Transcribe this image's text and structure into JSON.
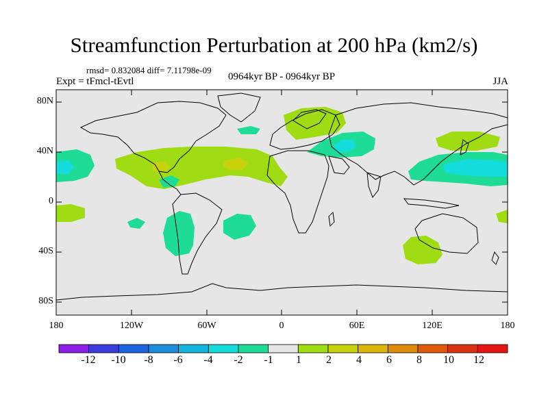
{
  "title": "Streamfunction Perturbation at 200 hPa (km2/s)",
  "stats": "rmsd= 0.832084 diff= 7.11798e-09",
  "experiment": "Expt = tFmcl-tEvtl",
  "period": "0964kyr BP - 0964kyr BP",
  "season": "JJA",
  "lat_labels": [
    "80N",
    "40N",
    "0",
    "40S",
    "80S"
  ],
  "lon_labels": [
    "180",
    "120W",
    "60W",
    "0",
    "60E",
    "120E",
    "180"
  ],
  "colorbar": {
    "labels": [
      "-12",
      "-10",
      "-8",
      "-6",
      "-4",
      "-2",
      "-1",
      "1",
      "2",
      "4",
      "6",
      "8",
      "10",
      "12"
    ],
    "colors": [
      "#8c1ee6",
      "#3c3cdc",
      "#1e64dc",
      "#1e8cdc",
      "#14b4dc",
      "#14dcdc",
      "#1edc96",
      "#e6e6e6",
      "#a0dc14",
      "#c8d20a",
      "#dcb40a",
      "#dc8c0a",
      "#dc5a0a",
      "#dc3214",
      "#e61414"
    ]
  },
  "colors": {
    "background": "#e6e6e6",
    "positive_weak": "#a0dc14",
    "positive_mid": "#c8d20a",
    "negative_weak": "#1edc96",
    "negative_mid": "#14dcdc"
  }
}
